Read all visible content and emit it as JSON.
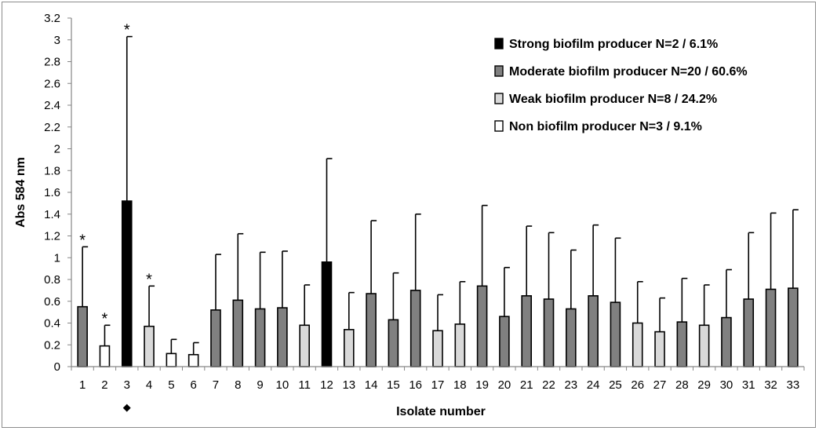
{
  "chart_data": {
    "type": "bar",
    "title": "",
    "xlabel": "Isolate number",
    "ylabel": "Abs 584 nm",
    "ylim": [
      0,
      3.2
    ],
    "ytick_step": 0.2,
    "yticks": [
      "0",
      "0.2",
      "0.4",
      "0.6",
      "0.8",
      "1",
      "1.2",
      "1.4",
      "1.6",
      "1.8",
      "2",
      "2.2",
      "2.4",
      "2.6",
      "2.8",
      "3",
      "3.2"
    ],
    "grid": false,
    "legend_position": "top-right",
    "categories": [
      "1",
      "2",
      "3",
      "4",
      "5",
      "6",
      "7",
      "8",
      "9",
      "10",
      "11",
      "12",
      "13",
      "14",
      "15",
      "16",
      "17",
      "18",
      "19",
      "20",
      "21",
      "22",
      "23",
      "24",
      "25",
      "26",
      "27",
      "28",
      "29",
      "30",
      "31",
      "32",
      "33"
    ],
    "values": [
      0.55,
      0.19,
      1.52,
      0.37,
      0.12,
      0.11,
      0.52,
      0.61,
      0.53,
      0.54,
      0.38,
      0.96,
      0.34,
      0.67,
      0.43,
      0.7,
      0.33,
      0.39,
      0.74,
      0.46,
      0.65,
      0.62,
      0.53,
      0.65,
      0.59,
      0.4,
      0.32,
      0.41,
      0.38,
      0.45,
      0.62,
      0.71,
      0.72
    ],
    "error_upper": [
      1.1,
      0.38,
      3.03,
      0.74,
      0.25,
      0.22,
      1.03,
      1.22,
      1.05,
      1.06,
      0.75,
      1.91,
      0.68,
      1.34,
      0.86,
      1.4,
      0.66,
      0.78,
      1.48,
      0.91,
      1.29,
      1.23,
      1.07,
      1.3,
      1.18,
      0.78,
      0.63,
      0.81,
      0.75,
      0.89,
      1.23,
      1.41,
      1.44
    ],
    "classes": [
      "moderate",
      "non",
      "strong",
      "weak",
      "non",
      "non",
      "moderate",
      "moderate",
      "moderate",
      "moderate",
      "weak",
      "strong",
      "weak",
      "moderate",
      "moderate",
      "moderate",
      "weak",
      "weak",
      "moderate",
      "moderate",
      "moderate",
      "moderate",
      "moderate",
      "moderate",
      "moderate",
      "weak",
      "weak",
      "moderate",
      "weak",
      "moderate",
      "moderate",
      "moderate",
      "moderate"
    ],
    "series": [
      {
        "key": "strong",
        "name": "Strong biofilm producer N=2 / 6.1%",
        "color": "#000000"
      },
      {
        "key": "moderate",
        "name": "Moderate biofilm producer N=20 / 60.6%",
        "color": "#808080"
      },
      {
        "key": "weak",
        "name": "Weak biofilm producer N=8 / 24.2%",
        "color": "#d9d9d9"
      },
      {
        "key": "non",
        "name": "Non biofilm producer N=3 / 9.1%",
        "color": "#ffffff"
      }
    ],
    "annotations": [
      {
        "category": "1",
        "text": "*"
      },
      {
        "category": "2",
        "text": "*"
      },
      {
        "category": "3",
        "text": "*"
      },
      {
        "category": "4",
        "text": "*"
      }
    ],
    "below_axis_marker": {
      "category": "3",
      "text": "◆"
    }
  }
}
